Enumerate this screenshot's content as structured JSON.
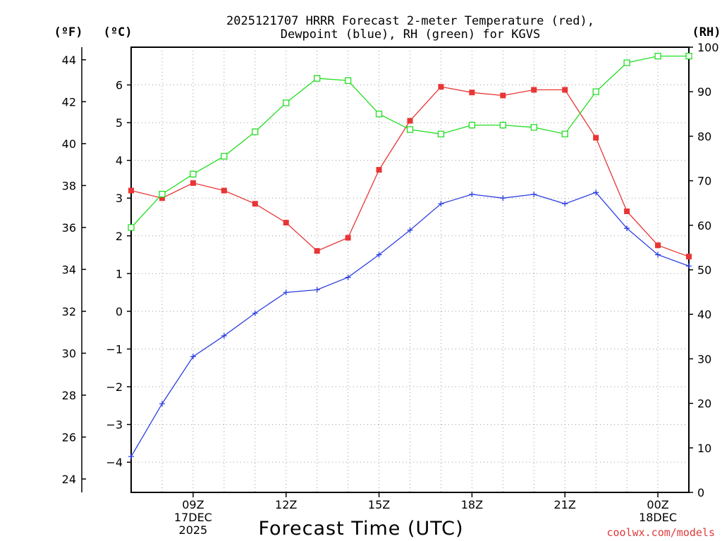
{
  "chart_data": {
    "type": "line",
    "title_line1": "2025121707 HRRR Forecast 2-meter Temperature (red),",
    "title_line2": "Dewpoint (blue), RH (green) for KGVS",
    "xlabel": "Forecast Time (UTC)",
    "credit": "coolwx.com/models",
    "units": {
      "fahrenheit": "(ºF)",
      "celsius": "(ºC)",
      "rh": "(RH)"
    },
    "x_hours": [
      7,
      8,
      9,
      10,
      11,
      12,
      13,
      14,
      15,
      16,
      17,
      18,
      19,
      20,
      21,
      22,
      23,
      24,
      25
    ],
    "xlim": [
      7,
      25
    ],
    "x_ticks": [
      {
        "hour": 9,
        "lines": [
          "09Z",
          "17DEC",
          "2025"
        ]
      },
      {
        "hour": 12,
        "lines": [
          "12Z"
        ]
      },
      {
        "hour": 15,
        "lines": [
          "15Z"
        ]
      },
      {
        "hour": 18,
        "lines": [
          "18Z"
        ]
      },
      {
        "hour": 21,
        "lines": [
          "21Z"
        ]
      },
      {
        "hour": 24,
        "lines": [
          "00Z",
          "18DEC"
        ]
      }
    ],
    "celsius_axis": {
      "ylim": [
        -4.8,
        7.0
      ],
      "ticks": [
        -4,
        -3,
        -2,
        -1,
        0,
        1,
        2,
        3,
        4,
        5,
        6
      ]
    },
    "fahrenheit_axis": {
      "ticks": [
        24,
        26,
        28,
        30,
        32,
        34,
        36,
        38,
        40,
        42,
        44
      ]
    },
    "rh_axis": {
      "ylim": [
        0,
        100
      ],
      "ticks": [
        0,
        10,
        20,
        30,
        40,
        50,
        60,
        70,
        80,
        90,
        100
      ]
    },
    "series": [
      {
        "name": "Temperature",
        "axis": "celsius",
        "color": "#e83535",
        "marker": "filled-square",
        "values": [
          3.2,
          3.0,
          3.4,
          3.2,
          2.85,
          2.35,
          1.6,
          1.95,
          3.75,
          5.05,
          5.95,
          5.8,
          5.72,
          5.87,
          5.87,
          4.6,
          2.65,
          1.75,
          1.45
        ]
      },
      {
        "name": "Dewpoint",
        "axis": "celsius",
        "color": "#2c3fe0",
        "marker": "plus",
        "values": [
          -3.85,
          -2.45,
          -1.2,
          -0.65,
          -0.05,
          0.5,
          0.57,
          0.9,
          1.5,
          2.15,
          2.85,
          3.1,
          3.0,
          3.1,
          2.85,
          3.15,
          2.2,
          1.5,
          1.2
        ]
      },
      {
        "name": "RH",
        "axis": "rh",
        "color": "#22dd22",
        "marker": "open-square",
        "values": [
          59.5,
          67,
          71.5,
          75.5,
          81,
          87.5,
          93,
          92.5,
          85,
          81.5,
          80.5,
          82.5,
          82.5,
          82,
          80.5,
          90,
          96.5,
          98,
          98
        ]
      }
    ]
  }
}
